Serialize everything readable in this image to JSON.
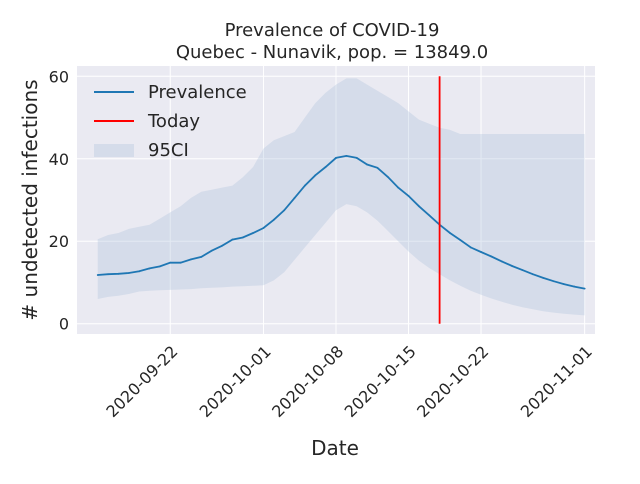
{
  "chart_data": {
    "type": "line",
    "title_line1": "Prevalence of COVID-19",
    "title_line2": "Quebec - Nunavik, pop. = 13849.0",
    "xlabel": "Date",
    "ylabel": "# undetected infections",
    "ylim": [
      -2.5,
      62.5
    ],
    "xlim": [
      "2020-09-13",
      "2020-11-02"
    ],
    "yticks": [
      0,
      20,
      40,
      60
    ],
    "xticks": [
      "2020-09-22",
      "2020-10-01",
      "2020-10-08",
      "2020-10-15",
      "2020-10-22",
      "2020-11-01"
    ],
    "grid": true,
    "legend_position": "upper-left",
    "legend": [
      {
        "label": "Prevalence",
        "kind": "line",
        "color": "#1f77b4"
      },
      {
        "label": "Today",
        "kind": "line",
        "color": "#ff0000"
      },
      {
        "label": "95CI",
        "kind": "band",
        "color": "#b0c4de"
      }
    ],
    "today": "2020-10-18",
    "x": [
      "2020-09-15",
      "2020-09-16",
      "2020-09-17",
      "2020-09-18",
      "2020-09-19",
      "2020-09-20",
      "2020-09-21",
      "2020-09-22",
      "2020-09-23",
      "2020-09-24",
      "2020-09-25",
      "2020-09-26",
      "2020-09-27",
      "2020-09-28",
      "2020-09-29",
      "2020-09-30",
      "2020-10-01",
      "2020-10-02",
      "2020-10-03",
      "2020-10-04",
      "2020-10-05",
      "2020-10-06",
      "2020-10-07",
      "2020-10-08",
      "2020-10-09",
      "2020-10-10",
      "2020-10-11",
      "2020-10-12",
      "2020-10-13",
      "2020-10-14",
      "2020-10-15",
      "2020-10-16",
      "2020-10-17",
      "2020-10-18",
      "2020-10-19",
      "2020-10-20",
      "2020-10-21",
      "2020-10-22",
      "2020-10-23",
      "2020-10-24",
      "2020-10-25",
      "2020-10-26",
      "2020-10-27",
      "2020-10-28",
      "2020-10-29",
      "2020-10-30",
      "2020-10-31",
      "2020-11-01"
    ],
    "series": [
      {
        "name": "Prevalence",
        "color": "#1f77b4",
        "values": [
          11.8,
          12.0,
          12.1,
          12.3,
          12.7,
          13.4,
          13.9,
          14.8,
          14.8,
          15.6,
          16.2,
          17.7,
          18.9,
          20.4,
          20.9,
          22.0,
          23.2,
          25.2,
          27.5,
          30.5,
          33.5,
          36.0,
          38.0,
          40.2,
          40.7,
          40.2,
          38.6,
          37.8,
          35.6,
          33.0,
          31.0,
          28.5,
          26.3,
          24.0,
          22.0,
          20.3,
          18.5,
          17.4,
          16.3,
          15.1,
          14.0,
          13.0,
          12.0,
          11.1,
          10.3,
          9.6,
          9.0,
          8.5
        ]
      }
    ],
    "ci_lower": [
      6.0,
      6.5,
      6.8,
      7.2,
      7.8,
      8.0,
      8.1,
      8.2,
      8.3,
      8.4,
      8.6,
      8.7,
      8.8,
      9.0,
      9.1,
      9.2,
      9.3,
      10.5,
      12.5,
      15.5,
      18.5,
      21.5,
      24.5,
      27.5,
      29.0,
      28.5,
      27.0,
      25.0,
      22.5,
      20.0,
      17.5,
      15.3,
      13.5,
      12.0,
      10.5,
      9.2,
      8.0,
      7.0,
      6.1,
      5.3,
      4.6,
      4.0,
      3.5,
      3.0,
      2.7,
      2.4,
      2.2,
      2.0
    ],
    "ci_upper": [
      20.5,
      21.5,
      22.0,
      23.0,
      23.5,
      24.0,
      25.5,
      27.0,
      28.5,
      30.5,
      32.0,
      32.5,
      33.0,
      33.5,
      35.5,
      38.0,
      42.5,
      44.5,
      45.5,
      46.5,
      50.0,
      53.5,
      56.0,
      58.0,
      59.5,
      59.5,
      58.0,
      56.5,
      55.0,
      53.5,
      51.5,
      49.5,
      48.5,
      47.5,
      47.0,
      46.0,
      46.0,
      46.0,
      46.0,
      46.0,
      46.0,
      46.0,
      46.0,
      46.0,
      46.0,
      46.0,
      46.0,
      46.0
    ]
  }
}
